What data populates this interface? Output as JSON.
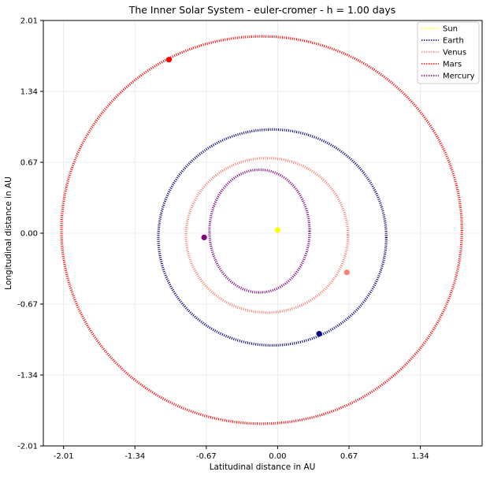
{
  "chart_data": {
    "type": "line",
    "title": "The Inner Solar System - euler-cromer - h = 1.00 days",
    "xlabel": "Latitudinal distance in AU",
    "ylabel": "Longitudinal distance in AU",
    "xlim": [
      -2.2,
      1.92
    ],
    "ylim": [
      -2.01,
      2.01
    ],
    "xticks": [
      -2.01,
      -1.34,
      -0.67,
      0.0,
      0.67,
      1.34
    ],
    "xtick_labels": [
      "-2.01",
      "-1.34",
      "-0.67",
      "0.00",
      "0.67",
      "1.34"
    ],
    "yticks": [
      -2.01,
      -1.34,
      -0.67,
      0.0,
      0.67,
      1.34,
      2.01
    ],
    "ytick_labels": [
      "-2.01",
      "-1.34",
      "-0.67",
      "0.00",
      "0.67",
      "1.34",
      "2.01"
    ],
    "grid": true,
    "legend_position": "top-right",
    "series": [
      {
        "name": "Sun",
        "color": "#ffff00",
        "center": [
          0.0,
          0.03
        ],
        "radius": [
          0.0,
          0.0
        ],
        "current_position": [
          0.0,
          0.03
        ]
      },
      {
        "name": "Earth",
        "color": "#000080",
        "center": [
          -0.05,
          -0.04
        ],
        "radius": [
          1.07,
          1.02
        ],
        "current_position": [
          0.39,
          -0.95
        ]
      },
      {
        "name": "Venus",
        "color": "#fa8072",
        "center": [
          -0.1,
          -0.02
        ],
        "radius": [
          0.76,
          0.73
        ],
        "current_position": [
          0.65,
          -0.37
        ]
      },
      {
        "name": "Mars",
        "color": "#ff0000",
        "center": [
          -0.15,
          0.03
        ],
        "radius": [
          1.88,
          1.83
        ],
        "current_position": [
          -1.02,
          1.64
        ]
      },
      {
        "name": "Mercury",
        "color": "#800080",
        "center": [
          -0.17,
          0.02
        ],
        "radius": [
          0.47,
          0.58
        ],
        "current_position": [
          -0.69,
          -0.04
        ]
      }
    ]
  }
}
